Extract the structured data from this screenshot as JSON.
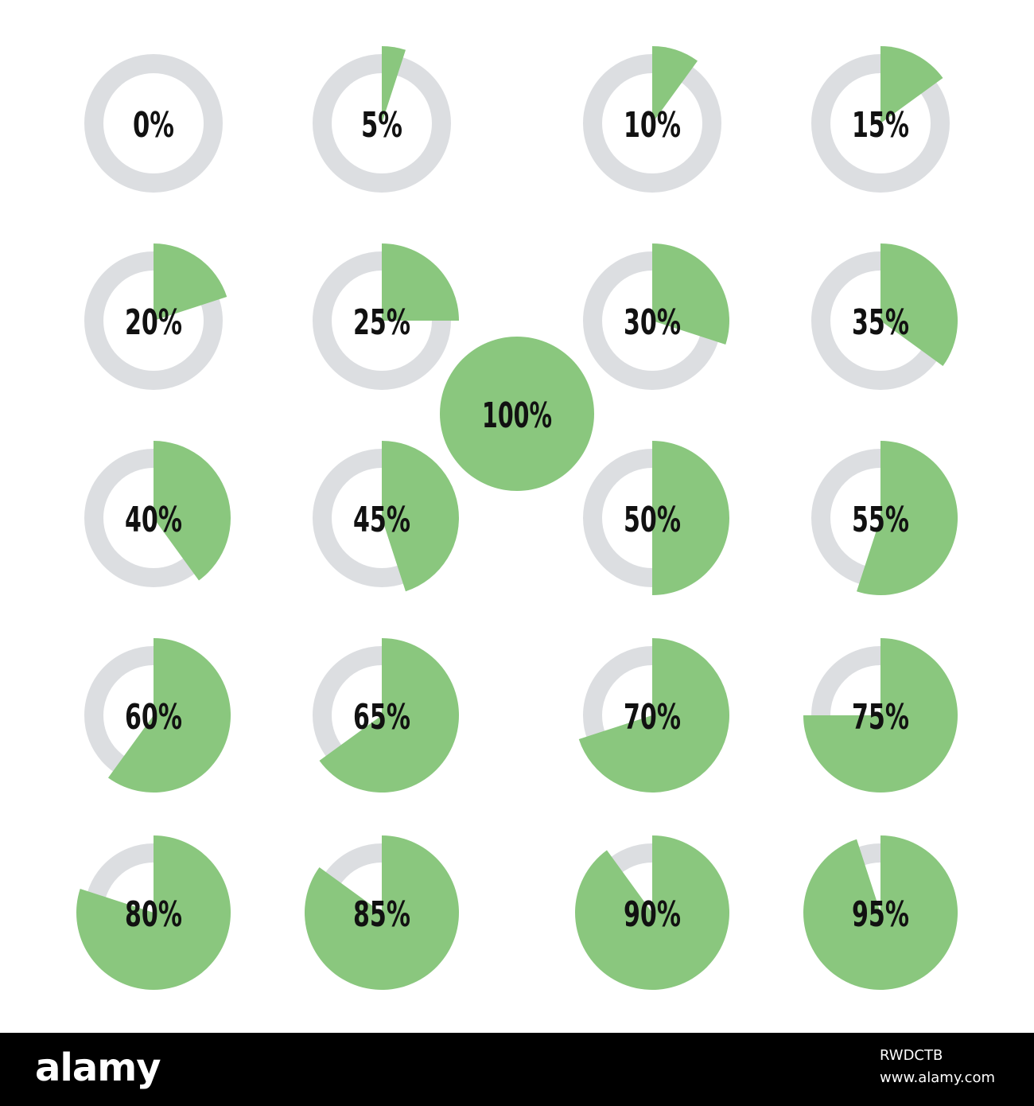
{
  "colors": {
    "fill": "#8ac77e",
    "track": "#dcdee1",
    "label": "#111111",
    "background": "#ffffff",
    "footer": "#000000"
  },
  "indicators": [
    {
      "label": "0%",
      "value": 0.0
    },
    {
      "label": "5%",
      "value": 0.05
    },
    {
      "label": "10%",
      "value": 0.1
    },
    {
      "label": "15%",
      "value": 0.15
    },
    {
      "label": "20%",
      "value": 0.2
    },
    {
      "label": "25%",
      "value": 0.25
    },
    {
      "label": "30%",
      "value": 0.3
    },
    {
      "label": "35%",
      "value": 0.35
    },
    {
      "label": "40%",
      "value": 0.4
    },
    {
      "label": "45%",
      "value": 0.45
    },
    {
      "label": "50%",
      "value": 0.5
    },
    {
      "label": "55%",
      "value": 0.55
    },
    {
      "label": "60%",
      "value": 0.6
    },
    {
      "label": "65%",
      "value": 0.65
    },
    {
      "label": "70%",
      "value": 0.7
    },
    {
      "label": "75%",
      "value": 0.75
    },
    {
      "label": "80%",
      "value": 0.8
    },
    {
      "label": "85%",
      "value": 0.85
    },
    {
      "label": "90%",
      "value": 0.9
    },
    {
      "label": "95%",
      "value": 0.95
    }
  ],
  "full_indicator": {
    "label": "100%",
    "value": 1.0
  },
  "footer": {
    "logo": "alamy",
    "image_id": "RWDCTB",
    "url": "www.alamy.com"
  }
}
